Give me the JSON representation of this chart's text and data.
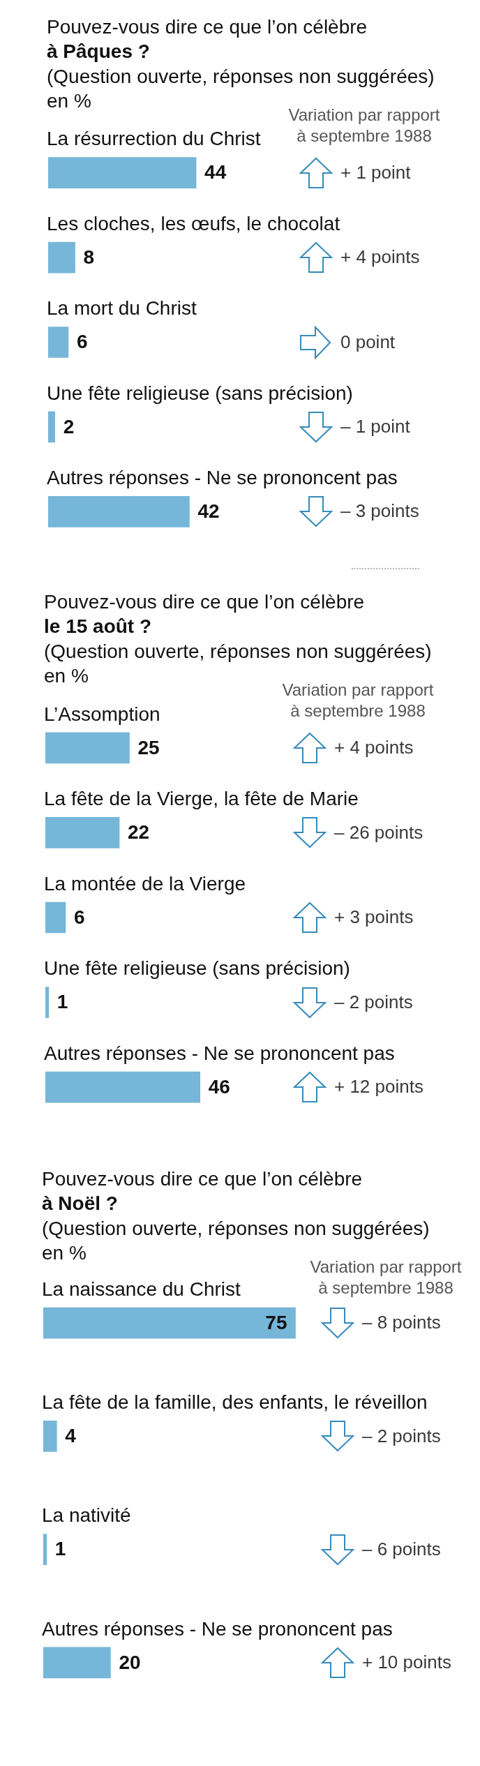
{
  "chart_data": [
    {
      "type": "bar",
      "orientation": "horizontal",
      "title": "Pouvez-vous dire ce que l’on célèbre\nà Pâques ?",
      "subtitle": "(Question ouverte, réponses non suggérées)\nen %",
      "categories": [
        "La résurrection du Christ",
        "Les cloches, les œufs, le chocolat",
        "La mort du Christ",
        "Une fête religieuse (sans précision)",
        "Autres réponses - Ne se prononcent pas"
      ],
      "values": [
        44,
        8,
        6,
        2,
        42
      ],
      "color": "#76b6d9",
      "data_labels": true,
      "tick_labels": "y",
      "annotations": [
        "Variation par rapport à septembre 1988",
        "+ 1 point",
        "+ 4 points",
        "0 point",
        "– 1 point",
        "– 3 points"
      ]
    },
    {
      "type": "bar",
      "orientation": "horizontal",
      "title": "Pouvez-vous dire ce que l’on célèbre\nle 15 août ?",
      "subtitle": "(Question ouverte, réponses non suggérées)\nen %",
      "categories": [
        "L’Assomption",
        "La fête de la Vierge, la fête de Marie",
        "La montée de la Vierge",
        "Une fête religieuse (sans précision)",
        "Autres réponses - Ne se prononcent pas"
      ],
      "values": [
        25,
        22,
        6,
        1,
        46
      ],
      "color": "#76b6d9",
      "data_labels": true,
      "tick_labels": "y",
      "annotations": [
        "Variation par rapport à septembre 1988",
        "+ 4 points",
        "– 26 points",
        "+ 3 points",
        "– 2 points",
        "+ 12 points"
      ]
    },
    {
      "type": "bar",
      "orientation": "horizontal",
      "title": "Pouvez-vous dire ce que l’on célèbre\nà Noël ?",
      "subtitle": "(Question ouverte, réponses non suggérées)\nen %",
      "categories": [
        "La naissance du Christ",
        "La fête de la famille, des enfants, le réveillon",
        "La nativité",
        "Autres réponses - Ne se prononcent pas"
      ],
      "values": [
        75,
        4,
        1,
        20
      ],
      "color": "#76b6d9",
      "data_labels": true,
      "tick_labels": "y",
      "annotations": [
        "Variation par rapport à septembre 1988",
        "– 8 points",
        "– 2 points",
        "– 6 points",
        "+ 10 points"
      ]
    }
  ]
}
